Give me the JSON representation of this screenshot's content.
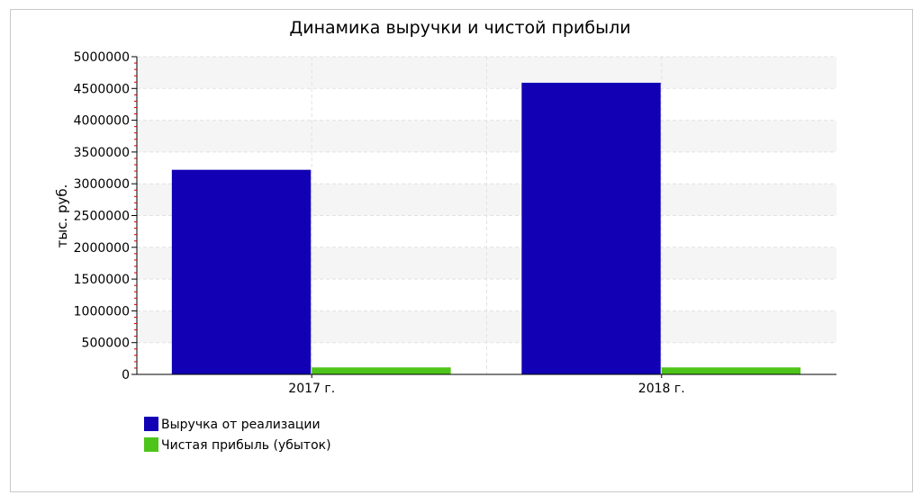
{
  "chart_data": {
    "type": "bar",
    "title": "Динамика выручки и чистой прибыли",
    "xlabel": "",
    "ylabel": "тыс. руб.",
    "categories": [
      "2017 г.",
      "2018 г."
    ],
    "series": [
      {
        "name": "Выручка от реализации",
        "values": [
          3220000,
          4590000
        ],
        "color": "#1100B4"
      },
      {
        "name": "Чистая прибыль (убыток)",
        "values": [
          110000,
          110000
        ],
        "color": "#4EC41A"
      }
    ],
    "ylim": [
      0,
      5000000
    ],
    "yticks": [
      "0",
      "500000",
      "1000000",
      "1500000",
      "2000000",
      "2500000",
      "3000000",
      "3500000",
      "4000000",
      "4500000",
      "5000000"
    ],
    "grid": true,
    "legend": "bottom-left",
    "colors": {
      "band": "#f5f5f5",
      "grid": "#e2e2e2",
      "axis": "#000000",
      "minor_tick": "#cc0000"
    }
  }
}
